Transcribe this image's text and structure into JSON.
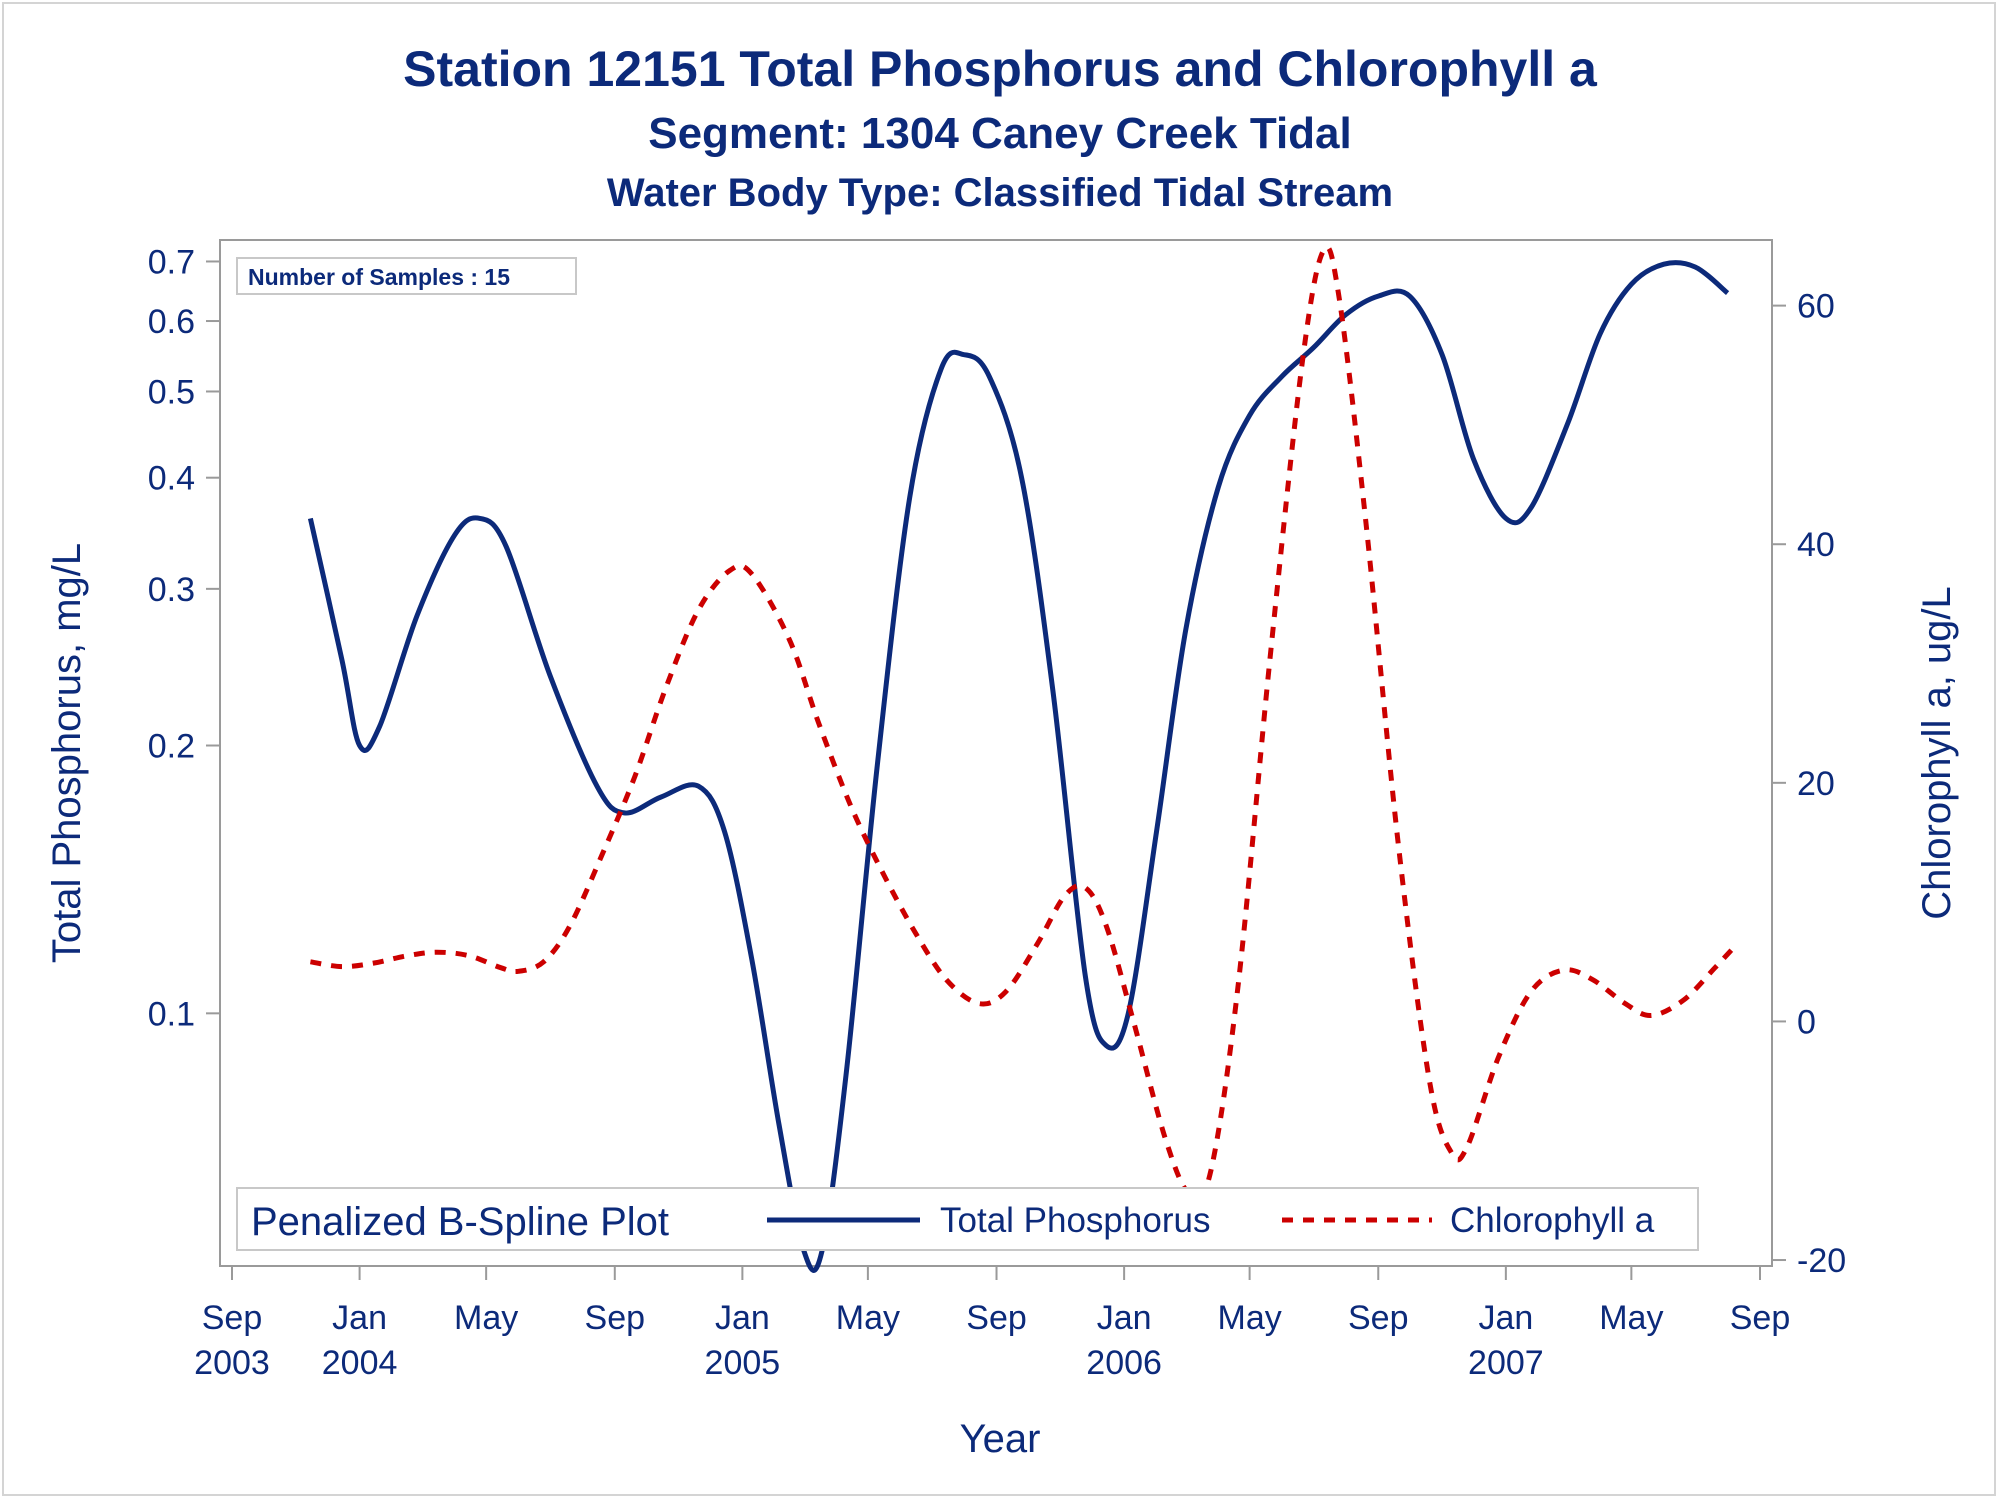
{
  "chart_data": {
    "type": "line",
    "title": "Station 12151  Total Phosphorus and Chlorophyll a",
    "subtitle": "Segment: 1304  Caney Creek Tidal",
    "subtitle2": "Water Body Type: Classified Tidal Stream",
    "xlabel": "Year",
    "ylabel": "Total Phosphorus, mg/L",
    "y2label": "Chlorophyll a, ug/L",
    "x_ticks": [
      {
        "month": "Sep",
        "year": "2003"
      },
      {
        "month": "Jan",
        "year": "2004"
      },
      {
        "month": "May",
        "year": ""
      },
      {
        "month": "Sep",
        "year": ""
      },
      {
        "month": "Jan",
        "year": "2005"
      },
      {
        "month": "May",
        "year": ""
      },
      {
        "month": "Sep",
        "year": ""
      },
      {
        "month": "Jan",
        "year": "2006"
      },
      {
        "month": "May",
        "year": ""
      },
      {
        "month": "Sep",
        "year": ""
      },
      {
        "month": "Jan",
        "year": "2007"
      },
      {
        "month": "May",
        "year": ""
      },
      {
        "month": "Sep",
        "year": ""
      }
    ],
    "y_scale": "log",
    "y_ticks": [
      {
        "value": 0.1,
        "label": "0.1"
      },
      {
        "value": 0.2,
        "label": "0.2"
      },
      {
        "value": 0.3,
        "label": "0.3"
      },
      {
        "value": 0.4,
        "label": "0.4"
      },
      {
        "value": 0.5,
        "label": "0.5"
      },
      {
        "value": 0.6,
        "label": "0.6"
      },
      {
        "value": 0.7,
        "label": "0.7"
      }
    ],
    "ylim": [
      0.052,
      0.74
    ],
    "y2_ticks": [
      {
        "value": -20,
        "label": "-20"
      },
      {
        "value": 0,
        "label": "0"
      },
      {
        "value": 20,
        "label": "20"
      },
      {
        "value": 40,
        "label": "40"
      },
      {
        "value": 60,
        "label": "60"
      }
    ],
    "y2lim": [
      -20.5,
      65.5
    ],
    "xlim": [
      "2003-09-01",
      "2007-09-01"
    ],
    "annotation": "Number of Samples : 15",
    "legend_title": "Penalized B-Spline Plot",
    "legend_position": "bottom-inside",
    "series": [
      {
        "name": "Total Phosphorus",
        "axis": "left",
        "color": "#0c2a7a",
        "style": "solid",
        "points": [
          [
            "2003-11-15",
            0.36
          ],
          [
            "2003-12-15",
            0.25
          ],
          [
            "2004-01-01",
            0.2
          ],
          [
            "2004-01-20",
            0.21
          ],
          [
            "2004-02-25",
            0.28
          ],
          [
            "2004-04-01",
            0.345
          ],
          [
            "2004-04-25",
            0.36
          ],
          [
            "2004-05-20",
            0.335
          ],
          [
            "2004-07-01",
            0.24
          ],
          [
            "2004-08-15",
            0.18
          ],
          [
            "2004-09-10",
            0.168
          ],
          [
            "2004-10-15",
            0.175
          ],
          [
            "2004-11-20",
            0.18
          ],
          [
            "2004-12-15",
            0.16
          ],
          [
            "2005-01-10",
            0.115
          ],
          [
            "2005-02-05",
            0.075
          ],
          [
            "2005-03-01",
            0.054
          ],
          [
            "2005-03-18",
            0.054
          ],
          [
            "2005-04-10",
            0.085
          ],
          [
            "2005-05-10",
            0.19
          ],
          [
            "2005-06-10",
            0.38
          ],
          [
            "2005-07-10",
            0.53
          ],
          [
            "2005-08-01",
            0.55
          ],
          [
            "2005-08-25",
            0.52
          ],
          [
            "2005-09-25",
            0.4
          ],
          [
            "2005-10-25",
            0.23
          ],
          [
            "2005-11-25",
            0.11
          ],
          [
            "2005-12-15",
            0.092
          ],
          [
            "2006-01-05",
            0.1
          ],
          [
            "2006-02-01",
            0.16
          ],
          [
            "2006-03-01",
            0.27
          ],
          [
            "2006-04-01",
            0.39
          ],
          [
            "2006-05-01",
            0.47
          ],
          [
            "2006-06-01",
            0.52
          ],
          [
            "2006-07-01",
            0.56
          ],
          [
            "2006-08-01",
            0.61
          ],
          [
            "2006-09-01",
            0.64
          ],
          [
            "2006-10-01",
            0.64
          ],
          [
            "2006-11-01",
            0.55
          ],
          [
            "2006-12-01",
            0.42
          ],
          [
            "2007-01-01",
            0.36
          ],
          [
            "2007-01-25",
            0.37
          ],
          [
            "2007-03-01",
            0.46
          ],
          [
            "2007-04-01",
            0.58
          ],
          [
            "2007-05-01",
            0.66
          ],
          [
            "2007-06-01",
            0.695
          ],
          [
            "2007-07-01",
            0.69
          ],
          [
            "2007-08-01",
            0.645
          ]
        ]
      },
      {
        "name": "Chlorophyll a",
        "axis": "right",
        "color": "#cc0000",
        "style": "dashed",
        "points": [
          [
            "2003-11-15",
            5.0
          ],
          [
            "2003-12-15",
            4.6
          ],
          [
            "2004-01-15",
            4.9
          ],
          [
            "2004-02-15",
            5.5
          ],
          [
            "2004-03-15",
            5.8
          ],
          [
            "2004-04-15",
            5.5
          ],
          [
            "2004-05-15",
            4.5
          ],
          [
            "2004-06-01",
            4.2
          ],
          [
            "2004-06-25",
            5.0
          ],
          [
            "2004-07-20",
            8.0
          ],
          [
            "2004-08-20",
            14.0
          ],
          [
            "2004-09-20",
            20.5
          ],
          [
            "2004-10-20",
            28.0
          ],
          [
            "2004-11-20",
            34.5
          ],
          [
            "2004-12-20",
            37.8
          ],
          [
            "2005-01-10",
            37.5
          ],
          [
            "2005-02-15",
            32.0
          ],
          [
            "2005-03-15",
            25.0
          ],
          [
            "2005-04-15",
            18.0
          ],
          [
            "2005-05-15",
            12.5
          ],
          [
            "2005-06-15",
            7.5
          ],
          [
            "2005-07-15",
            3.5
          ],
          [
            "2005-08-15",
            1.5
          ],
          [
            "2005-09-10",
            2.5
          ],
          [
            "2005-10-10",
            6.5
          ],
          [
            "2005-11-05",
            10.5
          ],
          [
            "2005-11-25",
            11.2
          ],
          [
            "2005-12-15",
            8.0
          ],
          [
            "2006-01-10",
            0.0
          ],
          [
            "2006-02-10",
            -10.0
          ],
          [
            "2006-03-05",
            -14.5
          ],
          [
            "2006-03-25",
            -12.5
          ],
          [
            "2006-04-20",
            3.0
          ],
          [
            "2006-05-20",
            30.0
          ],
          [
            "2006-06-20",
            55.0
          ],
          [
            "2006-07-10",
            64.5
          ],
          [
            "2006-07-25",
            61.0
          ],
          [
            "2006-08-20",
            42.0
          ],
          [
            "2006-09-20",
            15.0
          ],
          [
            "2006-10-20",
            -5.0
          ],
          [
            "2006-11-10",
            -11.0
          ],
          [
            "2006-11-25",
            -10.5
          ],
          [
            "2006-12-25",
            -3.0
          ],
          [
            "2007-01-25",
            2.5
          ],
          [
            "2007-02-25",
            4.3
          ],
          [
            "2007-03-25",
            3.5
          ],
          [
            "2007-04-25",
            1.5
          ],
          [
            "2007-05-20",
            0.5
          ],
          [
            "2007-06-20",
            1.8
          ],
          [
            "2007-07-20",
            4.5
          ],
          [
            "2007-08-10",
            6.5
          ]
        ]
      }
    ]
  }
}
